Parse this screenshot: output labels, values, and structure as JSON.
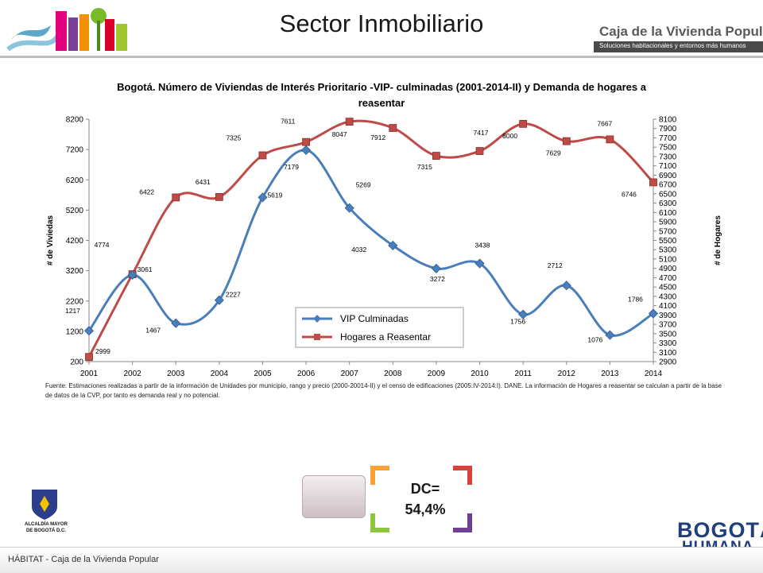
{
  "header": {
    "title": "Sector Inmobiliario",
    "brand_name": "Caja de la Vivienda Popular",
    "brand_tagline": "Soluciones habitacionales y entornos más humanos"
  },
  "chart_data": {
    "type": "line",
    "title": "Bogotá. Número de Viviendas de Interés Prioritario -VIP- culminadas (2001-2014-II) y Demanda de hogares a reasentar",
    "categories": [
      "2001",
      "2002",
      "2003",
      "2004",
      "2005",
      "2006",
      "2007",
      "2008",
      "2009",
      "2010",
      "2011",
      "2012",
      "2013",
      "2014"
    ],
    "ylabel_left": "# de Viviedas",
    "ylabel_right": "# de Hogares",
    "ylim_left": [
      200,
      8200
    ],
    "yticks_left": [
      200,
      1200,
      2200,
      3200,
      4200,
      5200,
      6200,
      7200,
      8200
    ],
    "ylim_right": [
      2900,
      8100
    ],
    "right_tick_step": 200,
    "legend_position": "center-right",
    "series": [
      {
        "name": "VIP Culminadas",
        "axis": "left",
        "color": "#4a7ebb",
        "marker": "diamond",
        "values": [
          1217,
          3061,
          1467,
          2227,
          5619,
          7179,
          5269,
          4032,
          3272,
          3438,
          1756,
          2712,
          1076,
          1786
        ],
        "data_labels": [
          "1217",
          "3061",
          "1467",
          "2227",
          "5619",
          "7179",
          "5269",
          "4032",
          "3272",
          "3438",
          "1756",
          "2712",
          "1076",
          "1786"
        ]
      },
      {
        "name": "Hogares a Reasentar",
        "axis": "right",
        "color": "#be4b48",
        "marker": "square",
        "values": [
          2999,
          4774,
          6422,
          6431,
          7325,
          7611,
          8047,
          7912,
          7315,
          7417,
          8000,
          7629,
          7667,
          6746
        ],
        "data_labels": [
          "2999",
          "4774",
          "6422",
          "6431",
          "7325",
          "7611",
          "8047",
          "7912",
          "7315",
          "7417",
          "8000",
          "7629",
          "7667",
          "6746"
        ]
      }
    ]
  },
  "source_note": "Fuente: Estimaciones realizadas a partir de la información de Unidades por municipio, rango y precio (2000-20014-II) y el censo de edificaciones (2005:IV-2014:I). DANE. La información de Hogares a reasentar se calculan a partir de la base de datos de la CVP, por tanto es demanda real y no potencial.",
  "indicator": {
    "label": "DC=",
    "value": "54,4%"
  },
  "footer": {
    "text": "HÁBITAT - Caja de la Vivienda Popular",
    "alcaldia_line1": "ALCALDÍA MAYOR",
    "alcaldia_line2": "DE BOGOTÁ D.C.",
    "bogota_logo_top": "BOGOTÁ",
    "bogota_logo_bottom": "HUMANA"
  }
}
